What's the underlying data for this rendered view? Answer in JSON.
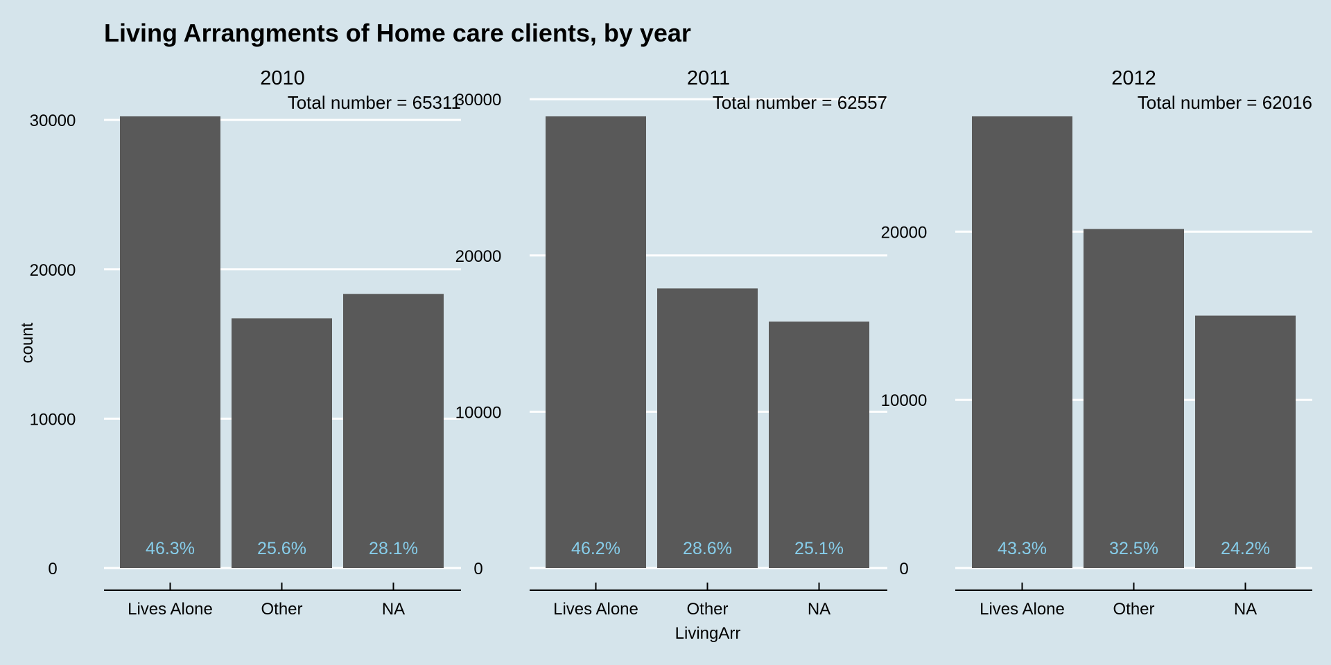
{
  "chart_data": {
    "type": "bar",
    "title": "Living Arrangments of Home care clients, by year",
    "xlabel": "LivingArr",
    "ylabel": "count",
    "categories": [
      "Lives Alone",
      "Other",
      "NA"
    ],
    "bar_color": "#595959",
    "label_color": "#87ceeb",
    "background": "#d5e4eb",
    "grid": true,
    "panels": [
      {
        "facet": "2010",
        "subtitle": "Total number = 65311",
        "values": [
          30238,
          16720,
          18353
        ],
        "labels": [
          "46.3%",
          "25.6%",
          "28.1%"
        ],
        "yticks": [
          0,
          10000,
          20000,
          30000
        ],
        "ytick_labels": [
          "0",
          "10000",
          "20000",
          "30000"
        ]
      },
      {
        "facet": "2011",
        "subtitle": "Total number = 62557",
        "values": [
          28901,
          17891,
          15765
        ],
        "labels": [
          "46.2%",
          "28.6%",
          "25.1%"
        ],
        "yticks": [
          0,
          10000,
          20000,
          30000
        ],
        "ytick_labels": [
          "0",
          "10000",
          "20000",
          "30000"
        ]
      },
      {
        "facet": "2012",
        "subtitle": "Total number = 62016",
        "values": [
          26853,
          20155,
          15008
        ],
        "labels": [
          "43.3%",
          "32.5%",
          "24.2%"
        ],
        "yticks": [
          0,
          10000,
          20000
        ],
        "ytick_labels": [
          "0",
          "10000",
          "20000"
        ]
      }
    ]
  }
}
